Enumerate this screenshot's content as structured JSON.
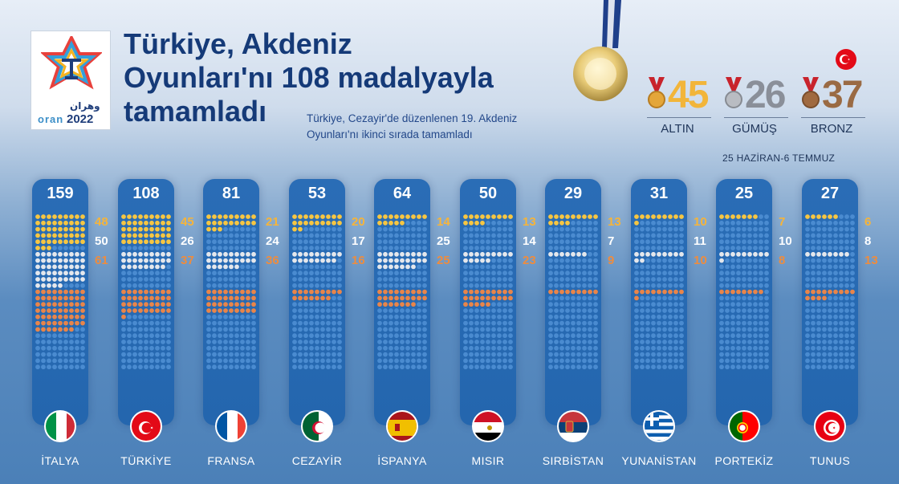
{
  "header": {
    "title_lines": [
      "Türkiye, Akdeniz",
      "Oyunları'nı 108 madalyayla",
      "tamamladı"
    ],
    "subtitle_lines": [
      "Türkiye, Cezayir'de düzenlenen 19. Akdeniz",
      "Oyunları'nı ikinci sırada tamamladı"
    ],
    "logo_arabic": "وهران",
    "logo_oran": "oran",
    "logo_year": "2022",
    "date_range": "25 HAZİRAN-6 TEMMUZ"
  },
  "summary": [
    {
      "label": "ALTIN",
      "value": "45",
      "color": "#f2b53a"
    },
    {
      "label": "GÜMÜŞ",
      "value": "26",
      "color": "#8a8f99"
    },
    {
      "label": "BRONZ",
      "value": "37",
      "color": "#9a6a43"
    }
  ],
  "colors": {
    "gold": "#f6c642",
    "silver": "#e4e7ec",
    "bronze": "#e8854a",
    "empty": "#4a8bd0",
    "gold_text": "#f6b43a",
    "silver_text": "#ffffff",
    "bronze_text": "#ee8c3e"
  },
  "chart_data": {
    "type": "table",
    "categories": [
      "İTALYA",
      "TÜRKİYE",
      "FRANSA",
      "CEZAYİR",
      "İSPANYA",
      "MISIR",
      "SIRBİSTAN",
      "YUNANİSTAN",
      "PORTEKİZ",
      "TUNUS"
    ],
    "series": [
      {
        "name": "ALTIN",
        "values": [
          48,
          45,
          21,
          20,
          14,
          13,
          13,
          10,
          7,
          6
        ]
      },
      {
        "name": "GÜMÜŞ",
        "values": [
          50,
          26,
          24,
          17,
          25,
          14,
          7,
          11,
          10,
          8
        ]
      },
      {
        "name": "BRONZ",
        "values": [
          61,
          37,
          36,
          16,
          25,
          23,
          9,
          10,
          8,
          13
        ]
      }
    ],
    "totals": [
      159,
      108,
      81,
      53,
      64,
      50,
      29,
      31,
      25,
      27
    ]
  },
  "countries": [
    {
      "name": "İTALYA",
      "total": "159",
      "gold": "48",
      "silver": "50",
      "bronze": "61",
      "flag": "italy-flag"
    },
    {
      "name": "TÜRKİYE",
      "total": "108",
      "gold": "45",
      "silver": "26",
      "bronze": "37",
      "flag": "turkey-flag"
    },
    {
      "name": "FRANSA",
      "total": "81",
      "gold": "21",
      "silver": "24",
      "bronze": "36",
      "flag": "france-flag"
    },
    {
      "name": "CEZAYİR",
      "total": "53",
      "gold": "20",
      "silver": "17",
      "bronze": "16",
      "flag": "algeria-flag"
    },
    {
      "name": "İSPANYA",
      "total": "64",
      "gold": "14",
      "silver": "25",
      "bronze": "25",
      "flag": "spain-flag"
    },
    {
      "name": "MISIR",
      "total": "50",
      "gold": "13",
      "silver": "14",
      "bronze": "23",
      "flag": "egypt-flag"
    },
    {
      "name": "SIRBİSTAN",
      "total": "29",
      "gold": "13",
      "silver": "7",
      "bronze": "9",
      "flag": "serbia-flag"
    },
    {
      "name": "YUNANİSTAN",
      "total": "31",
      "gold": "10",
      "silver": "11",
      "bronze": "10",
      "flag": "greece-flag"
    },
    {
      "name": "PORTEKİZ",
      "total": "25",
      "gold": "7",
      "silver": "10",
      "bronze": "8",
      "flag": "portugal-flag"
    },
    {
      "name": "TUNUS",
      "total": "27",
      "gold": "6",
      "silver": "8",
      "bronze": "13",
      "flag": "tunisia-flag"
    }
  ]
}
